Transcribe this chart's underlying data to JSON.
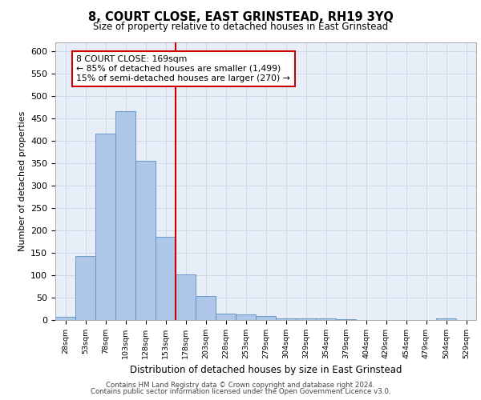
{
  "title": "8, COURT CLOSE, EAST GRINSTEAD, RH19 3YQ",
  "subtitle": "Size of property relative to detached houses in East Grinstead",
  "xlabel": "Distribution of detached houses by size in East Grinstead",
  "ylabel": "Number of detached properties",
  "categories": [
    "28sqm",
    "53sqm",
    "78sqm",
    "103sqm",
    "128sqm",
    "153sqm",
    "178sqm",
    "203sqm",
    "228sqm",
    "253sqm",
    "279sqm",
    "304sqm",
    "329sqm",
    "354sqm",
    "379sqm",
    "404sqm",
    "429sqm",
    "454sqm",
    "479sqm",
    "504sqm",
    "529sqm"
  ],
  "values": [
    8,
    143,
    416,
    465,
    355,
    185,
    101,
    53,
    15,
    12,
    9,
    4,
    3,
    3,
    1,
    0,
    0,
    0,
    0,
    3,
    0
  ],
  "bar_color": "#aec6e8",
  "bar_edge_color": "#5a8fc3",
  "vline_x_index": 6,
  "vline_color": "#cc0000",
  "annotation_text": "8 COURT CLOSE: 169sqm\n← 85% of detached houses are smaller (1,499)\n15% of semi-detached houses are larger (270) →",
  "annotation_box_color": "#ffffff",
  "annotation_box_edge": "#cc0000",
  "grid_color": "#d0d8e8",
  "background_color": "#e8eef8",
  "ylim": [
    0,
    620
  ],
  "yticks": [
    0,
    50,
    100,
    150,
    200,
    250,
    300,
    350,
    400,
    450,
    500,
    550,
    600
  ],
  "footer_line1": "Contains HM Land Registry data © Crown copyright and database right 2024.",
  "footer_line2": "Contains public sector information licensed under the Open Government Licence v3.0."
}
